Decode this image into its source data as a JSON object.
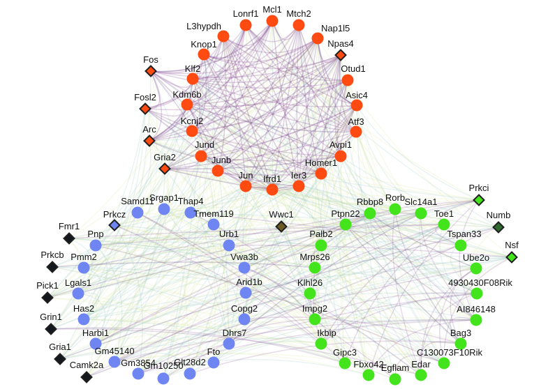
{
  "colors": {
    "red": "#ff4a12",
    "blue": "#6f86f2",
    "green": "#44e41c",
    "diamond_border": "#1f1f1f",
    "dark": "#14181e",
    "edge_purple": "#7a3d8a",
    "edge_yellow": "#dbe7a6",
    "edge_teal": "#9cc7c0"
  },
  "nodes": [
    {
      "id": "Lonrf1",
      "label": "Lonrf1",
      "group": "red",
      "shape": "circle"
    },
    {
      "id": "Mcl1",
      "label": "Mcl1",
      "group": "red",
      "shape": "circle"
    },
    {
      "id": "Mtch2",
      "label": "Mtch2",
      "group": "red",
      "shape": "circle"
    },
    {
      "id": "L3hypdh",
      "label": "L3hypdh",
      "group": "red",
      "shape": "circle"
    },
    {
      "id": "Nap1l5",
      "label": "Nap1l5",
      "group": "red",
      "shape": "circle"
    },
    {
      "id": "Knop1",
      "label": "Knop1",
      "group": "red",
      "shape": "circle"
    },
    {
      "id": "Npas4",
      "label": "Npas4",
      "group": "red",
      "shape": "diamond"
    },
    {
      "id": "Fos",
      "label": "Fos",
      "group": "red",
      "shape": "diamond"
    },
    {
      "id": "Klf2",
      "label": "Klf2",
      "group": "red",
      "shape": "circle"
    },
    {
      "id": "Otud1",
      "label": "Otud1",
      "group": "red",
      "shape": "circle"
    },
    {
      "id": "Kdm6b",
      "label": "Kdm6b",
      "group": "red",
      "shape": "circle"
    },
    {
      "id": "Asic4",
      "label": "Asic4",
      "group": "red",
      "shape": "circle"
    },
    {
      "id": "Fosl2",
      "label": "Fosl2",
      "group": "red",
      "shape": "diamond"
    },
    {
      "id": "Kcnj2",
      "label": "Kcnj2",
      "group": "red",
      "shape": "circle"
    },
    {
      "id": "Atf3",
      "label": "Atf3",
      "group": "red",
      "shape": "circle"
    },
    {
      "id": "Arc",
      "label": "Arc",
      "group": "red",
      "shape": "diamond"
    },
    {
      "id": "Jund",
      "label": "Jund",
      "group": "red",
      "shape": "circle"
    },
    {
      "id": "Avpi1",
      "label": "Avpi1",
      "group": "red",
      "shape": "circle"
    },
    {
      "id": "Gria2",
      "label": "Gria2",
      "group": "red",
      "shape": "diamond"
    },
    {
      "id": "Junb",
      "label": "Junb",
      "group": "red",
      "shape": "circle"
    },
    {
      "id": "Homer1",
      "label": "Homer1",
      "group": "red",
      "shape": "circle"
    },
    {
      "id": "Jun",
      "label": "Jun",
      "group": "red",
      "shape": "circle"
    },
    {
      "id": "Ifrd1",
      "label": "Ifrd1",
      "group": "red",
      "shape": "circle"
    },
    {
      "id": "Ier3",
      "label": "Ier3",
      "group": "red",
      "shape": "circle"
    },
    {
      "id": "Srgap1",
      "label": "Srgap1",
      "group": "blue",
      "shape": "circle"
    },
    {
      "id": "Samd11",
      "label": "Samd11",
      "group": "blue",
      "shape": "circle"
    },
    {
      "id": "Thap4",
      "label": "Thap4",
      "group": "blue",
      "shape": "circle"
    },
    {
      "id": "Prkcz",
      "label": "Prkcz",
      "group": "blue",
      "shape": "diamond"
    },
    {
      "id": "Tmem119",
      "label": "Tmem119",
      "group": "blue",
      "shape": "circle"
    },
    {
      "id": "Urb1",
      "label": "Urb1",
      "group": "blue",
      "shape": "circle"
    },
    {
      "id": "Pnp",
      "label": "Pnp",
      "group": "blue",
      "shape": "circle"
    },
    {
      "id": "Pmm2",
      "label": "Pmm2",
      "group": "blue",
      "shape": "circle"
    },
    {
      "id": "Vwa3b",
      "label": "Vwa3b",
      "group": "blue",
      "shape": "circle"
    },
    {
      "id": "Lgals1",
      "label": "Lgals1",
      "group": "blue",
      "shape": "circle"
    },
    {
      "id": "Arid1b",
      "label": "Arid1b",
      "group": "blue",
      "shape": "circle"
    },
    {
      "id": "Has2",
      "label": "Has2",
      "group": "blue",
      "shape": "circle"
    },
    {
      "id": "Copg2",
      "label": "Copg2",
      "group": "blue",
      "shape": "circle"
    },
    {
      "id": "Harbi1",
      "label": "Harbi1",
      "group": "blue",
      "shape": "circle"
    },
    {
      "id": "Dhrs7",
      "label": "Dhrs7",
      "group": "blue",
      "shape": "circle"
    },
    {
      "id": "Gm45140",
      "label": "Gm45140",
      "group": "blue",
      "shape": "circle"
    },
    {
      "id": "Fto",
      "label": "Fto",
      "group": "blue",
      "shape": "circle"
    },
    {
      "id": "Gm3854",
      "label": "Gm3854",
      "group": "blue",
      "shape": "circle"
    },
    {
      "id": "Gm10250",
      "label": "Gm10250",
      "group": "blue",
      "shape": "circle"
    },
    {
      "id": "Glt28d2",
      "label": "Glt28d2",
      "group": "blue",
      "shape": "circle"
    },
    {
      "id": "Fmr1",
      "label": "Fmr1",
      "group": "dark",
      "shape": "diamond"
    },
    {
      "id": "Prkcb",
      "label": "Prkcb",
      "group": "dark",
      "shape": "diamond"
    },
    {
      "id": "Pick1",
      "label": "Pick1",
      "group": "dark",
      "shape": "diamond"
    },
    {
      "id": "Grin1",
      "label": "Grin1",
      "group": "dark",
      "shape": "diamond"
    },
    {
      "id": "Gria1",
      "label": "Gria1",
      "group": "dark",
      "shape": "diamond"
    },
    {
      "id": "Camk2a",
      "label": "Camk2a",
      "group": "dark",
      "shape": "diamond"
    },
    {
      "id": "Wwc1",
      "label": "Wwc1",
      "group": "olive",
      "shape": "diamond"
    },
    {
      "id": "Rbbp8",
      "label": "Rbbp8",
      "group": "green",
      "shape": "circle"
    },
    {
      "id": "Rorb",
      "label": "Rorb",
      "group": "green",
      "shape": "circle"
    },
    {
      "id": "Slc14a1",
      "label": "Slc14a1",
      "group": "green",
      "shape": "circle"
    },
    {
      "id": "Ptpn22",
      "label": "Ptpn22",
      "group": "green",
      "shape": "circle"
    },
    {
      "id": "Toe1",
      "label": "Toe1",
      "group": "green",
      "shape": "circle"
    },
    {
      "id": "Prkci",
      "label": "Prkci",
      "group": "green",
      "shape": "diamond"
    },
    {
      "id": "Numb",
      "label": "Numb",
      "group": "green-dark",
      "shape": "diamond"
    },
    {
      "id": "Palb2",
      "label": "Palb2",
      "group": "green",
      "shape": "circle"
    },
    {
      "id": "Tspan33",
      "label": "Tspan33",
      "group": "green",
      "shape": "circle"
    },
    {
      "id": "Nsf",
      "label": "Nsf",
      "group": "green",
      "shape": "diamond"
    },
    {
      "id": "Mrps26",
      "label": "Mrps26",
      "group": "green",
      "shape": "circle"
    },
    {
      "id": "Ube2o",
      "label": "Ube2o",
      "group": "green",
      "shape": "circle"
    },
    {
      "id": "Klhl26",
      "label": "Klhl26",
      "group": "green",
      "shape": "circle"
    },
    {
      "id": "4930430F08Rik",
      "label": "4930430F08Rik",
      "group": "green",
      "shape": "circle"
    },
    {
      "id": "Impg2",
      "label": "Impg2",
      "group": "green",
      "shape": "circle"
    },
    {
      "id": "AI846148",
      "label": "AI846148",
      "group": "green",
      "shape": "circle"
    },
    {
      "id": "Ikbip",
      "label": "Ikbip",
      "group": "green",
      "shape": "circle"
    },
    {
      "id": "Bag3",
      "label": "Bag3",
      "group": "green",
      "shape": "circle"
    },
    {
      "id": "Gipc3",
      "label": "Gipc3",
      "group": "green",
      "shape": "circle"
    },
    {
      "id": "C130073F10Rik",
      "label": "C130073F10Rik",
      "group": "green",
      "shape": "circle"
    },
    {
      "id": "Fbxo42",
      "label": "Fbxo42",
      "group": "green",
      "shape": "circle"
    },
    {
      "id": "Egflam",
      "label": "Egflam",
      "group": "green",
      "shape": "circle"
    },
    {
      "id": "Edar",
      "label": "Edar",
      "group": "green",
      "shape": "circle"
    }
  ]
}
